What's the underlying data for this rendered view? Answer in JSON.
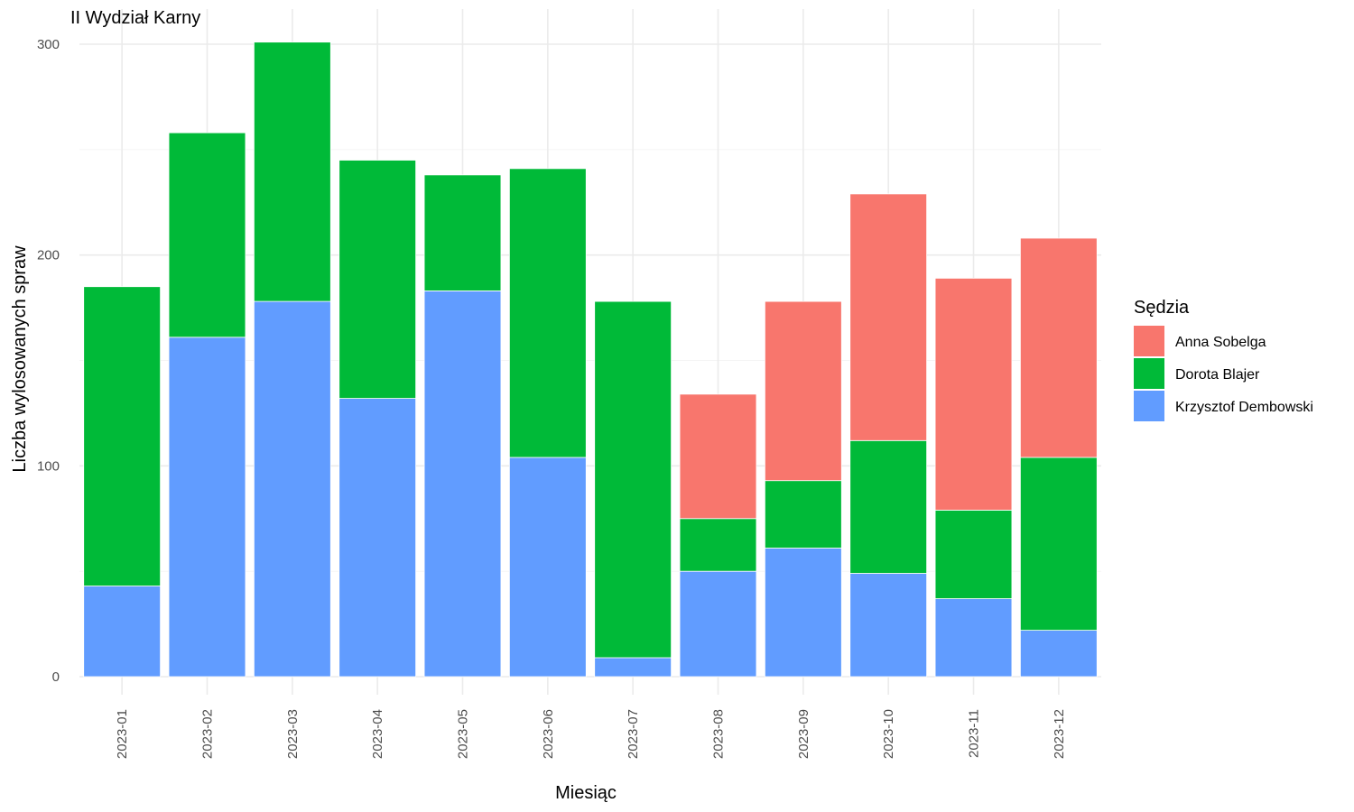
{
  "chart_data": {
    "type": "bar",
    "stacked": true,
    "title": "II Wydział Karny",
    "xlabel": "Miesiąc",
    "ylabel": "Liczba wylosowanych spraw",
    "categories": [
      "2023-01",
      "2023-02",
      "2023-03",
      "2023-04",
      "2023-05",
      "2023-06",
      "2023-07",
      "2023-08",
      "2023-09",
      "2023-10",
      "2023-11",
      "2023-12"
    ],
    "ylim": [
      0,
      300
    ],
    "yticks": [
      0,
      100,
      200,
      300
    ],
    "grid": true,
    "legend": {
      "title": "Sędzia",
      "position": "right"
    },
    "series": [
      {
        "name": "Anna Sobelga",
        "color": "#F8766D",
        "values": [
          0,
          0,
          0,
          0,
          0,
          0,
          0,
          59,
          85,
          117,
          110,
          104
        ]
      },
      {
        "name": "Dorota Blajer",
        "color": "#00BA38",
        "values": [
          142,
          97,
          123,
          113,
          55,
          137,
          169,
          25,
          32,
          63,
          42,
          82
        ]
      },
      {
        "name": "Krzysztof Dembowski",
        "color": "#619CFF",
        "values": [
          43,
          161,
          178,
          132,
          183,
          104,
          9,
          50,
          61,
          49,
          37,
          22
        ]
      }
    ]
  }
}
